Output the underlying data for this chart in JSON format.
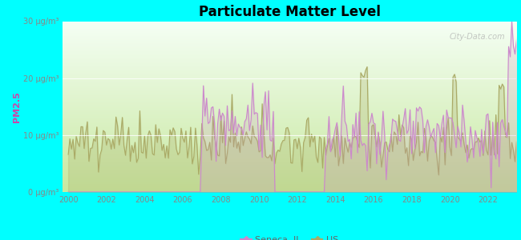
{
  "title": "Particulate Matter Level",
  "ylabel": "PM2.5",
  "background_outer": "#00FFFF",
  "ylim": [
    0,
    30
  ],
  "xlim": [
    1999.7,
    2023.5
  ],
  "yticks": [
    0,
    10,
    20,
    30
  ],
  "ytick_labels": [
    "0 μg/m³",
    "10 μg/m³",
    "20 μg/m³",
    "30 μg/m³"
  ],
  "xticks": [
    2000,
    2002,
    2004,
    2006,
    2008,
    2010,
    2012,
    2014,
    2016,
    2018,
    2020,
    2022
  ],
  "seneca_color": "#cc88cc",
  "us_color": "#aaaa66",
  "watermark": "City-Data.com",
  "legend_seneca": "Seneca, IL",
  "legend_us": "US",
  "bg_bottom": "#cce8b0",
  "bg_top": "#f0faf0"
}
